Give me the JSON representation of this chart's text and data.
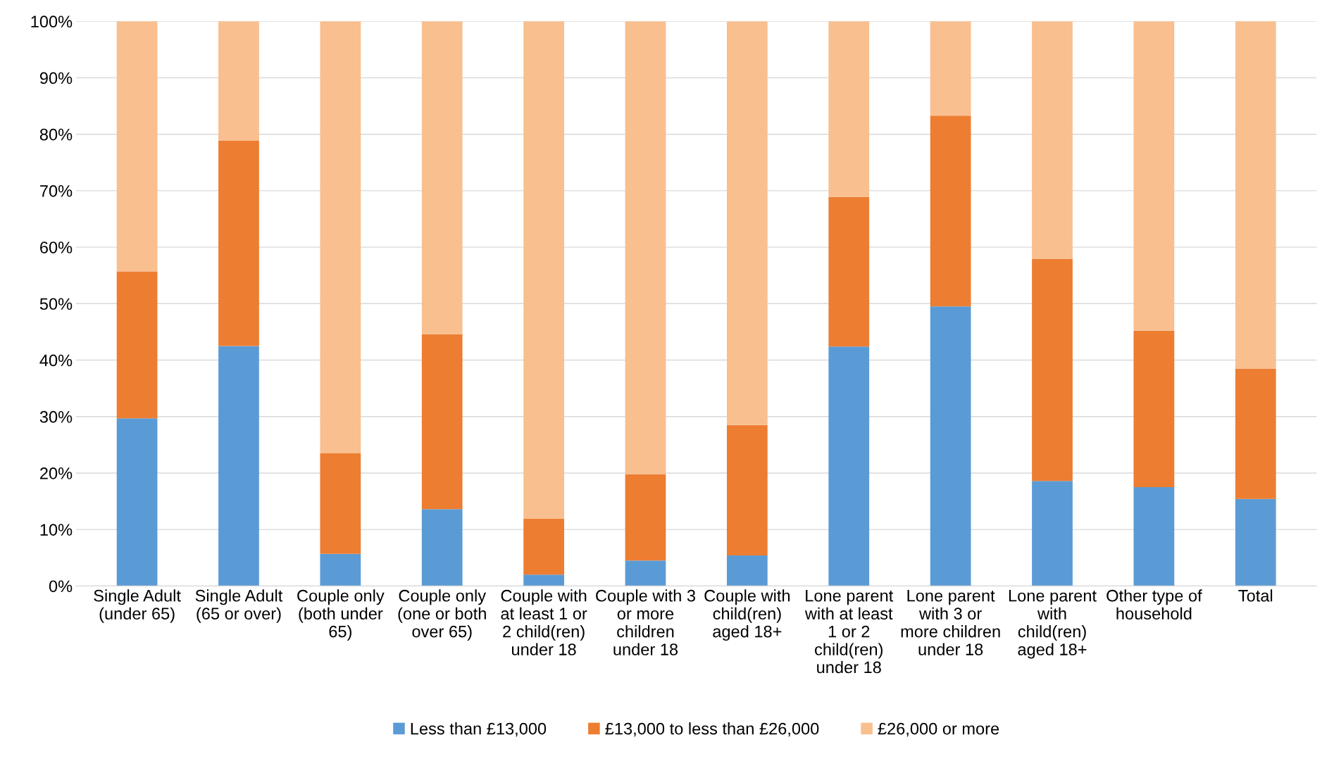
{
  "chart_data": {
    "type": "bar",
    "stacked": true,
    "categories": [
      "Single Adult (under 65)",
      "Single Adult (65 or over)",
      "Couple only (both under 65)",
      "Couple only (one or both over 65)",
      "Couple with at least 1 or 2 child(ren) under 18",
      "Couple with 3 or more children under 18",
      "Couple with child(ren) aged 18+",
      "Lone parent with at least 1 or 2 child(ren) under 18",
      "Lone parent with 3 or more children under 18",
      "Lone parent with child(ren) aged 18+",
      "Other type of household",
      "Total"
    ],
    "series": [
      {
        "name": "Less than £13,000",
        "color": "#5b9bd5",
        "values": [
          29.7,
          42.5,
          5.7,
          13.6,
          2.0,
          4.5,
          5.4,
          42.4,
          49.5,
          18.6,
          17.5,
          15.4
        ]
      },
      {
        "name": "£13,000 to less than £26,000",
        "color": "#ed7d31",
        "values": [
          26.0,
          36.4,
          17.8,
          31.0,
          9.9,
          15.3,
          23.1,
          26.5,
          33.8,
          39.3,
          27.7,
          23.1
        ]
      },
      {
        "name": "£26,000 or more",
        "color": "#f9bf8f",
        "values": [
          44.3,
          21.1,
          76.5,
          55.4,
          88.1,
          80.2,
          71.5,
          31.1,
          16.7,
          42.1,
          54.8,
          61.5
        ]
      }
    ],
    "ylim": [
      0,
      100
    ],
    "yticks": [
      {
        "value": 0,
        "label": "0%"
      },
      {
        "value": 10,
        "label": "10%"
      },
      {
        "value": 20,
        "label": "20%"
      },
      {
        "value": 30,
        "label": "30%"
      },
      {
        "value": 40,
        "label": "40%"
      },
      {
        "value": 50,
        "label": "50%"
      },
      {
        "value": 60,
        "label": "60%"
      },
      {
        "value": 70,
        "label": "70%"
      },
      {
        "value": 80,
        "label": "80%"
      },
      {
        "value": 90,
        "label": "90%"
      },
      {
        "value": 100,
        "label": "100%"
      }
    ],
    "grid": "y",
    "legend": "bottom"
  }
}
